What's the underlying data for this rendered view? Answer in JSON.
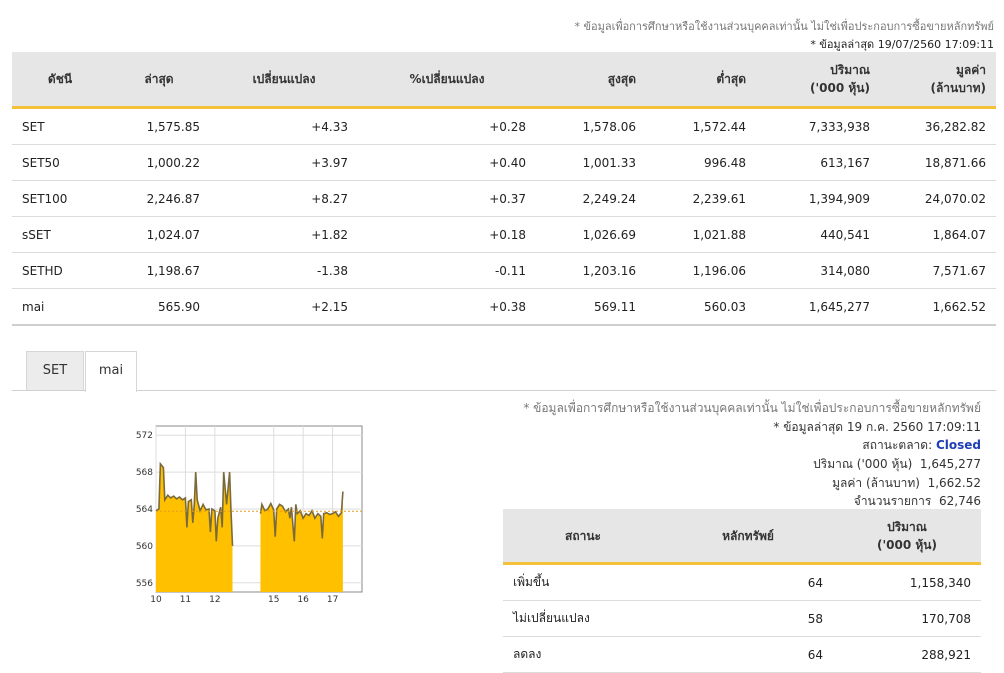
{
  "disclaimer_top": "* ข้อมูลเพื่อการศึกษาหรือใช้งานส่วนบุคคลเท่านั้น ไม่ใช่เพื่อประกอบการซื้อขายหลักทรัพย์",
  "updated_top": "* ข้อมูลล่าสุด 19/07/2560 17:09:11",
  "index_table": {
    "headers": {
      "index": "ดัชนี",
      "last": "ล่าสุด",
      "change": "เปลี่ยนแปลง",
      "pct_change": "%เปลี่ยนแปลง",
      "high": "สูงสุด",
      "low": "ต่ำสุด",
      "volume_l1": "ปริมาณ",
      "volume_l2": "('000 หุ้น)",
      "value_l1": "มูลค่า",
      "value_l2": "(ล้านบาท)"
    },
    "rows": [
      {
        "name": "SET",
        "last": "1,575.85",
        "change": "+4.33",
        "pct": "+0.28",
        "high": "1,578.06",
        "low": "1,572.44",
        "volume": "7,333,938",
        "value": "36,282.82"
      },
      {
        "name": "SET50",
        "last": "1,000.22",
        "change": "+3.97",
        "pct": "+0.40",
        "high": "1,001.33",
        "low": "996.48",
        "volume": "613,167",
        "value": "18,871.66"
      },
      {
        "name": "SET100",
        "last": "2,246.87",
        "change": "+8.27",
        "pct": "+0.37",
        "high": "2,249.24",
        "low": "2,239.61",
        "volume": "1,394,909",
        "value": "24,070.02"
      },
      {
        "name": "sSET",
        "last": "1,024.07",
        "change": "+1.82",
        "pct": "+0.18",
        "high": "1,026.69",
        "low": "1,021.88",
        "volume": "440,541",
        "value": "1,864.07"
      },
      {
        "name": "SETHD",
        "last": "1,198.67",
        "change": "-1.38",
        "pct": "-0.11",
        "high": "1,203.16",
        "low": "1,196.06",
        "volume": "314,080",
        "value": "7,571.67"
      },
      {
        "name": "mai",
        "last": "565.90",
        "change": "+2.15",
        "pct": "+0.38",
        "high": "569.11",
        "low": "560.03",
        "volume": "1,645,277",
        "value": "1,662.52"
      }
    ]
  },
  "tabs": [
    {
      "label": "SET"
    },
    {
      "label": "mai"
    }
  ],
  "disclaimer_mid": "* ข้อมูลเพื่อการศึกษาหรือใช้งานส่วนบุคคลเท่านั้น ไม่ใช่เพื่อประกอบการซื้อขายหลักทรัพย์",
  "market_info": {
    "updated": "* ข้อมูลล่าสุด 19 ก.ค. 2560 17:09:11",
    "status_label": "สถานะตลาด:",
    "status_value": "Closed",
    "volume_label": "ปริมาณ ('000 หุ้น)",
    "volume_value": "1,645,277",
    "value_label": "มูลค่า (ล้านบาท)",
    "value_value": "1,662.52",
    "trades_label": "จำนวนรายการ",
    "trades_value": "62,746"
  },
  "stat_table": {
    "headers": {
      "status": "สถานะ",
      "securities": "หลักทรัพย์",
      "volume_l1": "ปริมาณ",
      "volume_l2": "('000 หุ้น)"
    },
    "rows": [
      {
        "label": "เพิ่มขึ้น",
        "count": "64",
        "volume": "1,158,340"
      },
      {
        "label": "ไม่เปลี่ยนแปลง",
        "count": "58",
        "volume": "170,708"
      },
      {
        "label": "ลดลง",
        "count": "64",
        "volume": "288,921"
      }
    ]
  },
  "colors": {
    "accent": "#f3c23a",
    "positive": "#1a8f1a",
    "negative": "#d00000",
    "link": "#3b79b8",
    "closed": "#1f3fb5",
    "area_fill": "#ffc000"
  },
  "chart_data": {
    "type": "area",
    "ylim": [
      555,
      573
    ],
    "y_ticks": [
      "572",
      "568",
      "564",
      "560",
      "556"
    ],
    "y_tick_values": [
      572,
      568,
      564,
      560,
      556
    ],
    "x_range": [
      10,
      17
    ],
    "x_ticks": [
      "10",
      "11",
      "12",
      "15",
      "16",
      "17"
    ],
    "x_tick_values": [
      10,
      11,
      12,
      14,
      15,
      16
    ],
    "reference_value": 563.75,
    "series": [
      {
        "values": [
          [
            10.0,
            563.8
          ],
          [
            10.1,
            564.0
          ],
          [
            10.15,
            568.9
          ],
          [
            10.25,
            568.5
          ],
          [
            10.3,
            565.0
          ],
          [
            10.4,
            565.5
          ],
          [
            10.5,
            565.2
          ],
          [
            10.6,
            565.4
          ],
          [
            10.7,
            565.1
          ],
          [
            10.8,
            565.3
          ],
          [
            10.9,
            565.0
          ],
          [
            11.0,
            565.2
          ],
          [
            11.05,
            562.0
          ],
          [
            11.1,
            564.8
          ],
          [
            11.2,
            565.0
          ],
          [
            11.25,
            562.5
          ],
          [
            11.3,
            564.5
          ],
          [
            11.35,
            568.0
          ],
          [
            11.4,
            565.0
          ],
          [
            11.5,
            563.8
          ],
          [
            11.6,
            564.5
          ],
          [
            11.7,
            563.9
          ],
          [
            11.8,
            564.0
          ],
          [
            11.85,
            561.5
          ],
          [
            11.9,
            564.0
          ],
          [
            12.0,
            563.8
          ],
          [
            12.05,
            560.5
          ],
          [
            12.1,
            563.0
          ],
          [
            12.2,
            564.2
          ],
          [
            12.25,
            562.0
          ],
          [
            12.3,
            568.0
          ],
          [
            12.4,
            564.5
          ],
          [
            12.5,
            568.0
          ],
          [
            12.55,
            563.8
          ],
          [
            12.6,
            560.0
          ],
          [
            13.55,
            563.5
          ],
          [
            13.6,
            564.5
          ],
          [
            13.7,
            563.8
          ],
          [
            13.8,
            564.0
          ],
          [
            13.9,
            564.6
          ],
          [
            14.0,
            563.9
          ],
          [
            14.05,
            561.0
          ],
          [
            14.1,
            564.0
          ],
          [
            14.2,
            564.5
          ],
          [
            14.3,
            564.3
          ],
          [
            14.4,
            563.7
          ],
          [
            14.5,
            564.0
          ],
          [
            14.55,
            563.0
          ],
          [
            14.6,
            564.2
          ],
          [
            14.7,
            560.5
          ],
          [
            14.75,
            564.5
          ],
          [
            14.8,
            563.5
          ],
          [
            14.9,
            563.8
          ],
          [
            15.0,
            563.0
          ],
          [
            15.1,
            563.5
          ],
          [
            15.2,
            563.3
          ],
          [
            15.3,
            563.8
          ],
          [
            15.4,
            563.0
          ],
          [
            15.5,
            563.5
          ],
          [
            15.6,
            563.2
          ],
          [
            15.65,
            560.8
          ],
          [
            15.7,
            563.5
          ],
          [
            15.8,
            563.6
          ],
          [
            15.9,
            563.4
          ],
          [
            16.0,
            563.5
          ],
          [
            16.1,
            563.7
          ],
          [
            16.2,
            563.2
          ],
          [
            16.3,
            563.6
          ],
          [
            16.35,
            565.9
          ]
        ]
      }
    ]
  }
}
